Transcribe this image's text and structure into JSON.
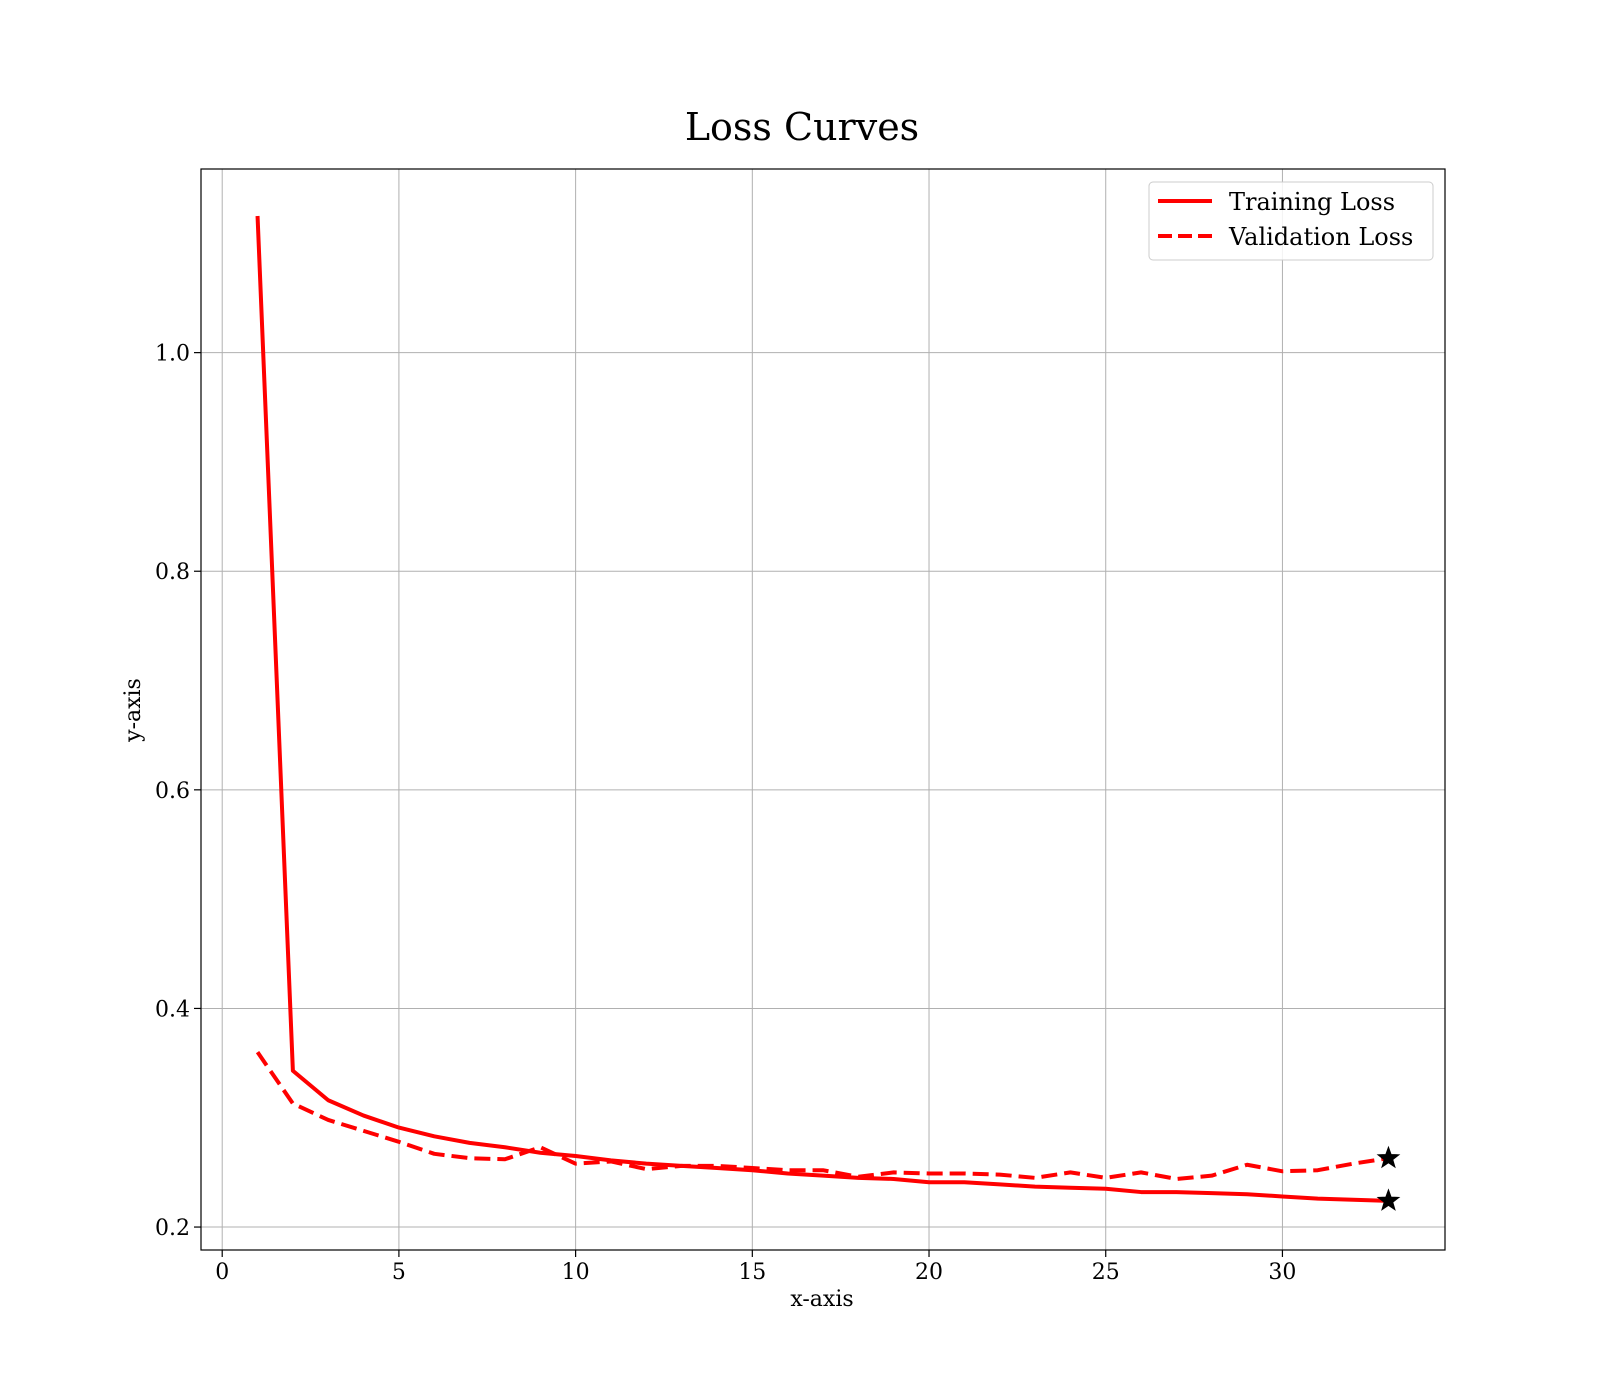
{
  "chart_data": {
    "type": "line",
    "title": "Loss Curves",
    "xlabel": "x-axis",
    "ylabel": "y-axis",
    "xlim": [
      -0.6,
      34.6
    ],
    "ylim": [
      0.179,
      1.168
    ],
    "xticks": [
      0,
      5,
      10,
      15,
      20,
      25,
      30
    ],
    "yticks": [
      0.2,
      0.4,
      0.6,
      0.8,
      1.0
    ],
    "xtick_labels": [
      "0",
      "5",
      "10",
      "15",
      "20",
      "25",
      "30"
    ],
    "ytick_labels": [
      "0.2",
      "0.4",
      "0.6",
      "0.8",
      "1.0"
    ],
    "grid": true,
    "legend_position": "top-right",
    "x": [
      1,
      2,
      3,
      4,
      5,
      6,
      7,
      8,
      9,
      10,
      11,
      12,
      13,
      14,
      15,
      16,
      17,
      18,
      19,
      20,
      21,
      22,
      23,
      24,
      25,
      26,
      27,
      28,
      29,
      30,
      31,
      32,
      33
    ],
    "series": [
      {
        "name": "Training Loss",
        "color": "#ff0000",
        "style": "solid",
        "values": [
          1.125,
          0.343,
          0.316,
          0.302,
          0.291,
          0.283,
          0.277,
          0.273,
          0.268,
          0.265,
          0.261,
          0.258,
          0.256,
          0.254,
          0.252,
          0.249,
          0.247,
          0.245,
          0.244,
          0.241,
          0.241,
          0.239,
          0.237,
          0.236,
          0.235,
          0.232,
          0.232,
          0.231,
          0.23,
          0.228,
          0.226,
          0.225,
          0.224
        ]
      },
      {
        "name": "Validation Loss",
        "color": "#ff0000",
        "style": "dashed",
        "values": [
          0.36,
          0.313,
          0.298,
          0.288,
          0.278,
          0.267,
          0.263,
          0.262,
          0.273,
          0.258,
          0.26,
          0.253,
          0.256,
          0.256,
          0.254,
          0.252,
          0.252,
          0.246,
          0.25,
          0.249,
          0.249,
          0.248,
          0.245,
          0.25,
          0.245,
          0.25,
          0.244,
          0.247,
          0.257,
          0.251,
          0.252,
          0.258,
          0.263
        ]
      }
    ],
    "markers": [
      {
        "series": "Training Loss",
        "x": 33,
        "y": 0.224,
        "shape": "star",
        "color": "#000000"
      },
      {
        "series": "Validation Loss",
        "x": 33,
        "y": 0.263,
        "shape": "star",
        "color": "#000000"
      }
    ]
  }
}
